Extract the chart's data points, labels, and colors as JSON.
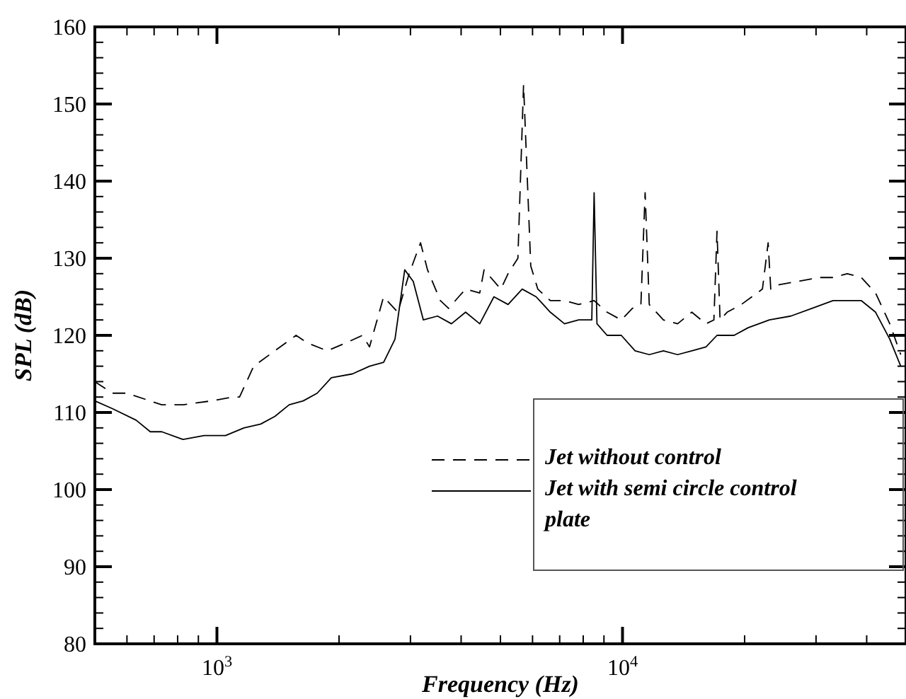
{
  "chart_data": {
    "type": "line",
    "xlabel": "Frequency (Hz)",
    "ylabel": "SPL (dB)",
    "log": "x",
    "grid": false,
    "legend": "right",
    "marker": "none",
    "xlim": [
      500,
      50000
    ],
    "ylim": [
      80,
      160
    ],
    "xticks": [
      {
        "value": 600,
        "label": null
      },
      {
        "value": 700,
        "label": null
      },
      {
        "value": 800,
        "label": null
      },
      {
        "value": 900,
        "label": null
      },
      {
        "value": 1000,
        "label": "10$^{3}$"
      },
      {
        "value": 2000,
        "label": null
      },
      {
        "value": 3000,
        "label": null
      },
      {
        "value": 4000,
        "label": null
      },
      {
        "value": 5000,
        "label": null
      },
      {
        "value": 6000,
        "label": null
      },
      {
        "value": 7000,
        "label": null
      },
      {
        "value": 8000,
        "label": null
      },
      {
        "value": 9000,
        "label": null
      },
      {
        "value": 10000,
        "label": "10$^{4}$"
      },
      {
        "value": 20000,
        "label": null
      },
      {
        "value": 30000,
        "label": null
      },
      {
        "value": 40000,
        "label": null
      }
    ],
    "yticks": [
      80,
      {
        "value": 82,
        "label": null
      },
      {
        "value": 84,
        "label": null
      },
      {
        "value": 86,
        "label": null
      },
      {
        "value": 88,
        "label": null
      },
      90,
      {
        "value": 92,
        "label": null
      },
      {
        "value": 94,
        "label": null
      },
      {
        "value": 96,
        "label": null
      },
      {
        "value": 98,
        "label": null
      },
      100,
      {
        "value": 102,
        "label": null
      },
      {
        "value": 104,
        "label": null
      },
      {
        "value": 106,
        "label": null
      },
      {
        "value": 108,
        "label": null
      },
      110,
      {
        "value": 112,
        "label": null
      },
      {
        "value": 114,
        "label": null
      },
      {
        "value": 116,
        "label": null
      },
      {
        "value": 118,
        "label": null
      },
      120,
      {
        "value": 122,
        "label": null
      },
      {
        "value": 124,
        "label": null
      },
      {
        "value": 126,
        "label": null
      },
      {
        "value": 128,
        "label": null
      },
      130,
      {
        "value": 132,
        "label": null
      },
      {
        "value": 134,
        "label": null
      },
      {
        "value": 136,
        "label": null
      },
      {
        "value": 138,
        "label": null
      },
      140,
      {
        "value": 142,
        "label": null
      },
      {
        "value": 144,
        "label": null
      },
      {
        "value": 146,
        "label": null
      },
      {
        "value": 148,
        "label": null
      },
      150,
      {
        "value": 152,
        "label": null
      },
      {
        "value": 154,
        "label": null
      },
      {
        "value": 156,
        "label": null
      },
      {
        "value": 158,
        "label": null
      },
      160
    ],
    "series": [
      {
        "name": "Jet without control",
        "color": "#000000",
        "line_style": "dashed",
        "x": [
          500,
          552,
          600,
          731,
          825,
          968,
          1092,
          1137,
          1232,
          1390,
          1567,
          1672,
          1870,
          2075,
          2285,
          2378,
          2576,
          2793,
          2978,
          3177,
          3305,
          3555,
          3726,
          3945,
          4103,
          4446,
          4557,
          5012,
          5222,
          5521,
          5702,
          5940,
          6181,
          6637,
          7194,
          7796,
          8511,
          9162,
          9931,
          10575,
          11100,
          11370,
          11640,
          12610,
          13670,
          14820,
          16060,
          16800,
          17100,
          17400,
          18110,
          19630,
          22130,
          22860,
          23200,
          23990,
          27040,
          30480,
          33040,
          35810,
          38810,
          42070,
          45600,
          48530
        ],
        "values": [
          114,
          112.5,
          112.5,
          111,
          111,
          111.5,
          112,
          112,
          116,
          118,
          120,
          119,
          118,
          119,
          120,
          118.5,
          125,
          123,
          128,
          132,
          128.5,
          124.5,
          123.5,
          125,
          126,
          125.5,
          128.5,
          126,
          128,
          130,
          152.5,
          129,
          126,
          124.5,
          124.5,
          124,
          124.5,
          123,
          122,
          123.5,
          124,
          138.5,
          124,
          122,
          121.5,
          123,
          121.5,
          122,
          133.5,
          122,
          123,
          124,
          126,
          132,
          126,
          126.5,
          127,
          127.5,
          127.5,
          128,
          127.5,
          125.5,
          121.5,
          117.5
        ]
      },
      {
        "name": "Jet with semi circle control plate",
        "color": "#000000",
        "line_style": "solid",
        "x": [
          500,
          552,
          632,
          685,
          731,
          825,
          930,
          1050,
          1165,
          1282,
          1390,
          1507,
          1632,
          1767,
          1915,
          2158,
          2378,
          2576,
          2748,
          2904,
          3048,
          3228,
          3499,
          3786,
          4103,
          4446,
          4819,
          5222,
          5658,
          6124,
          6637,
          7194,
          7796,
          8185,
          8400,
          8511,
          8650,
          9162,
          9931,
          10740,
          11640,
          12610,
          13670,
          14820,
          16060,
          17100,
          18840,
          20420,
          23030,
          26000,
          29310,
          33040,
          35810,
          38810,
          42070,
          45600,
          48530
        ],
        "values": [
          111.5,
          110.5,
          109,
          107.5,
          107.5,
          106.5,
          107,
          107,
          108,
          108.5,
          109.5,
          111,
          111.5,
          112.5,
          114.5,
          115,
          116,
          116.5,
          119.5,
          128.5,
          127,
          122,
          122.5,
          121.5,
          123,
          121.5,
          125,
          124,
          126,
          125,
          123,
          121.5,
          122,
          122,
          122,
          138.5,
          121.5,
          120,
          120,
          118,
          117.5,
          118,
          117.5,
          118,
          118.5,
          120,
          120,
          121,
          122,
          122.5,
          123.5,
          124.5,
          124.5,
          124.5,
          123,
          119.5,
          116
        ]
      }
    ]
  }
}
